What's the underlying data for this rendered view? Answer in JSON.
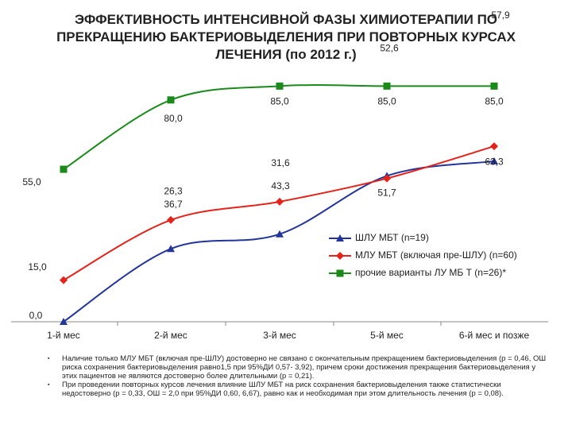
{
  "chart_data": {
    "type": "line",
    "title": "ЭФФЕКТИВНОСТЬ ИНТЕНСИВНОЙ ФАЗЫ ХИМИОТЕРАПИИ ПО ПРЕКРАЩЕНИЮ БАКТЕРИОВЫДЕЛЕНИЯ ПРИ ПОВТОРНЫХ КУРСАХ ЛЕЧЕНИЯ (по 2012 г.)",
    "categories": [
      "1-й мес",
      "2-й мес",
      "3-й мес",
      "5-й мес",
      "6-й мес и позже"
    ],
    "ylim": [
      0,
      100
    ],
    "smooth": true,
    "series": [
      {
        "name": "ШЛУ МБТ (n=19)",
        "color": "#23359a",
        "marker": "triangle",
        "values": [
          0.0,
          26.3,
          31.6,
          52.6,
          57.9
        ],
        "value_labels": [
          "0,0",
          "26,3",
          "31,6",
          "52,6",
          "57,9"
        ]
      },
      {
        "name": "МЛУ МБТ (включая пре-ШЛУ) (n=60)",
        "color": "#e4231b",
        "marker": "diamond",
        "values": [
          15.0,
          36.7,
          43.3,
          51.7,
          63.3
        ],
        "value_labels": [
          "15,0",
          "36,7",
          "43,3",
          "51,7",
          "63,3"
        ]
      },
      {
        "name": "прочие варианты ЛУ МБ Т (n=26)*",
        "color": "#1b8a1b",
        "marker": "square",
        "values": [
          55.0,
          80.0,
          85.0,
          85.0,
          85.0
        ],
        "value_labels": [
          "55,0",
          "80,0",
          "85,0",
          "85,0",
          "85,0"
        ]
      }
    ],
    "notes": [
      "Наличие только МЛУ МБТ (включая пре-ШЛУ) достоверно не связано с окончательным прекращением бактериовыделения (p = 0,46, ОШ риска сохранения бактериовыделения равно1,5 при 95%ДИ 0,57- 3,92), причем сроки достижения прекращения бактериовыделения у этих пациентов не являются достоверно более длительными (p = 0,21).",
      "При проведении повторных курсов лечения влияние ШЛУ МБТ на риск сохранения бактериовыделения также статистически недостоверно (p = 0,33, ОШ = 2,0 при 95%ДИ 0,60, 6,67), равно как и необходимая при этом длительность лечения (p = 0,08)."
    ]
  }
}
